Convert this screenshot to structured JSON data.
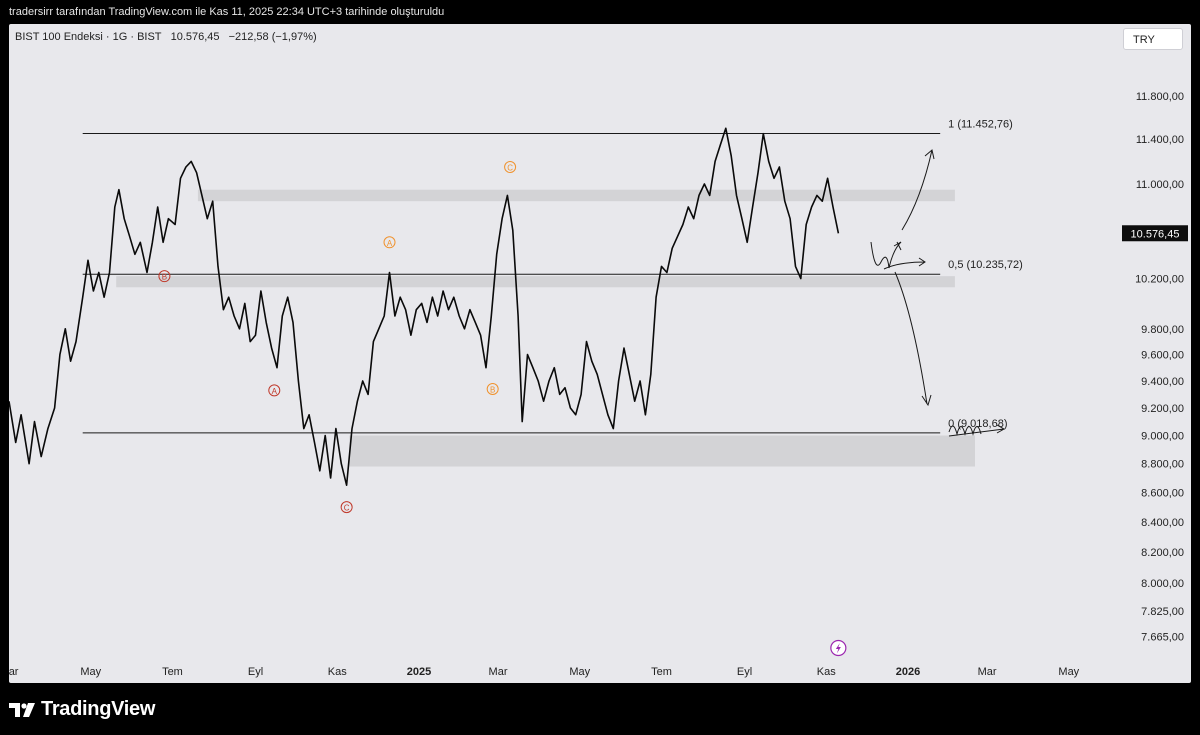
{
  "header": {
    "attribution": "tradersirr tarafından TradingView.com ile Kas 11, 2025 22:34 UTC+3 tarihinde oluşturuldu"
  },
  "symbol": {
    "name": "BIST 100 Endeksi · 1G · BIST",
    "price": "10.576,45",
    "change": "−212,58 (−1,97%)"
  },
  "currency_button": "TRY",
  "footer": {
    "brand": "TradingView",
    "logo_icon": "tradingview-logo-icon"
  },
  "chart_data": {
    "type": "line",
    "ylabel": "",
    "scale": "log",
    "ylim": [
      7500,
      12300
    ],
    "y_ticks": [
      {
        "value": 11800,
        "label": "11.800,00"
      },
      {
        "value": 11400,
        "label": "11.400,00"
      },
      {
        "value": 11000,
        "label": "11.000,00"
      },
      {
        "value": 10200,
        "label": "10.200,00"
      },
      {
        "value": 9800,
        "label": "9.800,00"
      },
      {
        "value": 9600,
        "label": "9.600,00"
      },
      {
        "value": 9400,
        "label": "9.400,00"
      },
      {
        "value": 9200,
        "label": "9.200,00"
      },
      {
        "value": 9000,
        "label": "9.000,00"
      },
      {
        "value": 8800,
        "label": "8.800,00"
      },
      {
        "value": 8600,
        "label": "8.600,00"
      },
      {
        "value": 8400,
        "label": "8.400,00"
      },
      {
        "value": 8200,
        "label": "8.200,00"
      },
      {
        "value": 8000,
        "label": "8.000,00"
      },
      {
        "value": 7825,
        "label": "7.825,00"
      },
      {
        "value": 7665,
        "label": "7.665,00"
      }
    ],
    "x_range": [
      "2024-03-01",
      "2026-05-31"
    ],
    "x_ticks": [
      {
        "date": "2024-03-01",
        "label": "Mar",
        "bold": false
      },
      {
        "date": "2024-05-01",
        "label": "May",
        "bold": false
      },
      {
        "date": "2024-07-01",
        "label": "Tem",
        "bold": false
      },
      {
        "date": "2024-09-01",
        "label": "Eyl",
        "bold": false
      },
      {
        "date": "2024-11-01",
        "label": "Kas",
        "bold": false
      },
      {
        "date": "2025-01-01",
        "label": "2025",
        "bold": true
      },
      {
        "date": "2025-03-01",
        "label": "Mar",
        "bold": false
      },
      {
        "date": "2025-05-01",
        "label": "May",
        "bold": false
      },
      {
        "date": "2025-07-01",
        "label": "Tem",
        "bold": false
      },
      {
        "date": "2025-09-01",
        "label": "Eyl",
        "bold": false
      },
      {
        "date": "2025-11-01",
        "label": "Kas",
        "bold": false
      },
      {
        "date": "2026-01-01",
        "label": "2026",
        "bold": true
      },
      {
        "date": "2026-03-01",
        "label": "Mar",
        "bold": false
      },
      {
        "date": "2026-05-01",
        "label": "May",
        "bold": false
      }
    ],
    "last_price_label": "10.576,45",
    "series": [
      {
        "points": [
          [
            "2024-03-01",
            9250
          ],
          [
            "2024-03-06",
            8950
          ],
          [
            "2024-03-10",
            9150
          ],
          [
            "2024-03-16",
            8800
          ],
          [
            "2024-03-20",
            9100
          ],
          [
            "2024-03-25",
            8850
          ],
          [
            "2024-03-30",
            9050
          ],
          [
            "2024-04-04",
            9200
          ],
          [
            "2024-04-08",
            9600
          ],
          [
            "2024-04-12",
            9800
          ],
          [
            "2024-04-16",
            9550
          ],
          [
            "2024-04-20",
            9700
          ],
          [
            "2024-04-25",
            10050
          ],
          [
            "2024-04-29",
            10350
          ],
          [
            "2024-05-03",
            10100
          ],
          [
            "2024-05-07",
            10250
          ],
          [
            "2024-05-11",
            10050
          ],
          [
            "2024-05-15",
            10250
          ],
          [
            "2024-05-19",
            10800
          ],
          [
            "2024-05-22",
            10950
          ],
          [
            "2024-05-26",
            10700
          ],
          [
            "2024-05-30",
            10550
          ],
          [
            "2024-06-03",
            10400
          ],
          [
            "2024-06-07",
            10500
          ],
          [
            "2024-06-12",
            10250
          ],
          [
            "2024-06-16",
            10500
          ],
          [
            "2024-06-20",
            10800
          ],
          [
            "2024-06-24",
            10500
          ],
          [
            "2024-06-28",
            10700
          ],
          [
            "2024-07-03",
            10650
          ],
          [
            "2024-07-07",
            11050
          ],
          [
            "2024-07-11",
            11150
          ],
          [
            "2024-07-15",
            11200
          ],
          [
            "2024-07-19",
            11100
          ],
          [
            "2024-07-23",
            10900
          ],
          [
            "2024-07-27",
            10700
          ],
          [
            "2024-07-31",
            10850
          ],
          [
            "2024-08-04",
            10300
          ],
          [
            "2024-08-08",
            9950
          ],
          [
            "2024-08-12",
            10050
          ],
          [
            "2024-08-16",
            9900
          ],
          [
            "2024-08-20",
            9800
          ],
          [
            "2024-08-24",
            10000
          ],
          [
            "2024-08-28",
            9700
          ],
          [
            "2024-09-01",
            9750
          ],
          [
            "2024-09-05",
            10100
          ],
          [
            "2024-09-09",
            9850
          ],
          [
            "2024-09-13",
            9650
          ],
          [
            "2024-09-17",
            9500
          ],
          [
            "2024-09-21",
            9900
          ],
          [
            "2024-09-25",
            10050
          ],
          [
            "2024-09-29",
            9850
          ],
          [
            "2024-10-03",
            9400
          ],
          [
            "2024-10-07",
            9050
          ],
          [
            "2024-10-11",
            9150
          ],
          [
            "2024-10-15",
            8950
          ],
          [
            "2024-10-19",
            8750
          ],
          [
            "2024-10-23",
            9000
          ],
          [
            "2024-10-27",
            8700
          ],
          [
            "2024-10-31",
            9050
          ],
          [
            "2024-11-04",
            8800
          ],
          [
            "2024-11-08",
            8650
          ],
          [
            "2024-11-12",
            9050
          ],
          [
            "2024-11-16",
            9250
          ],
          [
            "2024-11-20",
            9400
          ],
          [
            "2024-11-24",
            9300
          ],
          [
            "2024-11-28",
            9700
          ],
          [
            "2024-12-02",
            9800
          ],
          [
            "2024-12-06",
            9900
          ],
          [
            "2024-12-10",
            10250
          ],
          [
            "2024-12-14",
            9900
          ],
          [
            "2024-12-18",
            10050
          ],
          [
            "2024-12-22",
            9950
          ],
          [
            "2024-12-26",
            9750
          ],
          [
            "2024-12-30",
            9950
          ],
          [
            "2025-01-03",
            10000
          ],
          [
            "2025-01-07",
            9850
          ],
          [
            "2025-01-11",
            10050
          ],
          [
            "2025-01-15",
            9900
          ],
          [
            "2025-01-19",
            10100
          ],
          [
            "2025-01-23",
            9950
          ],
          [
            "2025-01-27",
            10050
          ],
          [
            "2025-01-31",
            9900
          ],
          [
            "2025-02-04",
            9800
          ],
          [
            "2025-02-08",
            9950
          ],
          [
            "2025-02-12",
            9850
          ],
          [
            "2025-02-16",
            9750
          ],
          [
            "2025-02-20",
            9500
          ],
          [
            "2025-02-24",
            9900
          ],
          [
            "2025-02-28",
            10400
          ],
          [
            "2025-03-04",
            10700
          ],
          [
            "2025-03-08",
            10900
          ],
          [
            "2025-03-12",
            10600
          ],
          [
            "2025-03-16",
            9900
          ],
          [
            "2025-03-19",
            9100
          ],
          [
            "2025-03-23",
            9600
          ],
          [
            "2025-03-27",
            9500
          ],
          [
            "2025-03-31",
            9400
          ],
          [
            "2025-04-04",
            9250
          ],
          [
            "2025-04-08",
            9400
          ],
          [
            "2025-04-12",
            9500
          ],
          [
            "2025-04-16",
            9300
          ],
          [
            "2025-04-20",
            9350
          ],
          [
            "2025-04-24",
            9200
          ],
          [
            "2025-04-28",
            9150
          ],
          [
            "2025-05-02",
            9300
          ],
          [
            "2025-05-06",
            9700
          ],
          [
            "2025-05-10",
            9550
          ],
          [
            "2025-05-14",
            9450
          ],
          [
            "2025-05-18",
            9300
          ],
          [
            "2025-05-22",
            9150
          ],
          [
            "2025-05-26",
            9050
          ],
          [
            "2025-05-30",
            9400
          ],
          [
            "2025-06-03",
            9650
          ],
          [
            "2025-06-07",
            9450
          ],
          [
            "2025-06-11",
            9250
          ],
          [
            "2025-06-15",
            9400
          ],
          [
            "2025-06-19",
            9150
          ],
          [
            "2025-06-23",
            9450
          ],
          [
            "2025-06-27",
            10050
          ],
          [
            "2025-07-01",
            10300
          ],
          [
            "2025-07-05",
            10250
          ],
          [
            "2025-07-09",
            10450
          ],
          [
            "2025-07-13",
            10550
          ],
          [
            "2025-07-17",
            10650
          ],
          [
            "2025-07-21",
            10800
          ],
          [
            "2025-07-25",
            10700
          ],
          [
            "2025-07-29",
            10900
          ],
          [
            "2025-08-02",
            11000
          ],
          [
            "2025-08-06",
            10900
          ],
          [
            "2025-08-10",
            11200
          ],
          [
            "2025-08-14",
            11350
          ],
          [
            "2025-08-18",
            11500
          ],
          [
            "2025-08-22",
            11250
          ],
          [
            "2025-08-26",
            10900
          ],
          [
            "2025-08-30",
            10700
          ],
          [
            "2025-09-03",
            10500
          ],
          [
            "2025-09-07",
            10800
          ],
          [
            "2025-09-11",
            11100
          ],
          [
            "2025-09-15",
            11450
          ],
          [
            "2025-09-19",
            11200
          ],
          [
            "2025-09-23",
            11050
          ],
          [
            "2025-09-27",
            11150
          ],
          [
            "2025-10-01",
            10850
          ],
          [
            "2025-10-05",
            10700
          ],
          [
            "2025-10-09",
            10300
          ],
          [
            "2025-10-13",
            10200
          ],
          [
            "2025-10-17",
            10650
          ],
          [
            "2025-10-21",
            10800
          ],
          [
            "2025-10-25",
            10900
          ],
          [
            "2025-10-29",
            10850
          ],
          [
            "2025-11-02",
            11050
          ],
          [
            "2025-11-06",
            10800
          ],
          [
            "2025-11-10",
            10576
          ]
        ]
      }
    ],
    "fib_levels": [
      {
        "value": 11452.76,
        "label": "1 (11.452,76)"
      },
      {
        "value": 10235.72,
        "label": "0,5 (10.235,72)"
      },
      {
        "value": 9018.68,
        "label": "0 (9.018,68)"
      }
    ],
    "zones": [
      {
        "from": "2024-07-20",
        "to": "2026-02-05",
        "low": 10850,
        "high": 10950
      },
      {
        "from": "2024-05-20",
        "to": "2026-02-05",
        "low": 10130,
        "high": 10220
      },
      {
        "from": "2024-11-10",
        "to": "2026-02-20",
        "low": 8780,
        "high": 9000
      }
    ],
    "wave_labels": [
      {
        "date": "2024-06-25",
        "value": 10220,
        "label": "B",
        "color": "#c0392b"
      },
      {
        "date": "2024-09-15",
        "value": 9330,
        "label": "A",
        "color": "#c0392b"
      },
      {
        "date": "2024-11-08",
        "value": 8500,
        "label": "C",
        "color": "#c0392b"
      },
      {
        "date": "2024-12-10",
        "value": 10500,
        "label": "A",
        "color": "#f0922d"
      },
      {
        "date": "2025-02-25",
        "value": 9340,
        "label": "B",
        "color": "#f0922d"
      },
      {
        "date": "2025-03-10",
        "value": 11150,
        "label": "C",
        "color": "#f0922d"
      }
    ]
  }
}
